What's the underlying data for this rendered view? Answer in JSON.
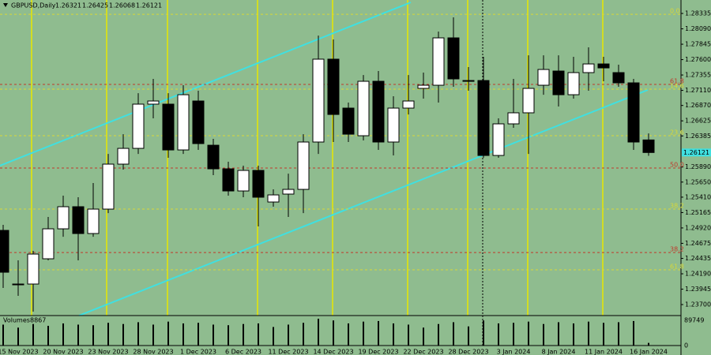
{
  "chart_data": {
    "type": "candlestick",
    "symbol": "GBPUSD,Daily",
    "volume_label": "Volumes",
    "categories": [
      null,
      "15 Nov 2023",
      null,
      null,
      "20 Nov 2023",
      null,
      null,
      "23 Nov 2023",
      null,
      null,
      "28 Nov 2023",
      null,
      null,
      "1 Dec 2023",
      null,
      null,
      "6 Dec 2023",
      null,
      null,
      "11 Dec 2023",
      null,
      null,
      "14 Dec 2023",
      null,
      null,
      "19 Dec 2023",
      null,
      null,
      "22 Dec 2023",
      null,
      null,
      "28 Dec 2023",
      null,
      null,
      "3 Jan 2024",
      null,
      null,
      "8 Jan 2024",
      null,
      null,
      "11 Jan 2024",
      null,
      null,
      "16 Jan 2024"
    ],
    "open": [
      1.24881,
      1.24027,
      1.24027,
      1.24429,
      1.24906,
      1.25258,
      1.24831,
      1.2522,
      1.25936,
      1.26187,
      1.26891,
      1.26891,
      1.26162,
      1.26941,
      1.26237,
      1.25861,
      1.25509,
      1.25836,
      1.25333,
      1.25459,
      1.25534,
      1.26288,
      1.27607,
      1.26828,
      1.26388,
      1.27255,
      1.26288,
      1.26828,
      1.27142,
      1.27192,
      1.27946,
      1.27267,
      1.27267,
      1.26074,
      1.26577,
      1.26753,
      1.27192,
      1.27418,
      1.27041,
      1.27393,
      1.27531,
      1.27393,
      1.2723,
      1.26321
    ],
    "high": [
      1.24969,
      1.24404,
      1.24555,
      1.25095,
      1.25434,
      1.25409,
      1.25635,
      1.26099,
      1.26413,
      1.27066,
      1.27293,
      1.27066,
      1.27192,
      1.27104,
      1.26338,
      1.25974,
      1.25911,
      1.25911,
      1.25534,
      1.25785,
      1.26413,
      1.27983,
      1.27921,
      1.26916,
      1.27355,
      1.27418,
      1.27016,
      1.27355,
      1.27393,
      1.28046,
      1.28272,
      1.27481,
      1.27644,
      1.26665,
      1.27293,
      1.27669,
      1.27669,
      1.27669,
      1.27644,
      1.27795,
      1.27644,
      1.27519,
      1.27293,
      1.26425
    ],
    "low": [
      1.23964,
      1.23839,
      1.23588,
      1.24404,
      1.2478,
      1.24404,
      1.2478,
      1.25157,
      1.25848,
      1.26099,
      1.26665,
      1.26037,
      1.26099,
      1.26162,
      1.2576,
      1.25434,
      1.25409,
      1.24944,
      1.25258,
      1.25095,
      1.25157,
      1.26099,
      1.26288,
      1.26288,
      1.26313,
      1.26162,
      1.26074,
      1.26727,
      1.26979,
      1.26916,
      1.27167,
      1.27104,
      1.26037,
      1.26037,
      1.26514,
      1.26099,
      1.27041,
      1.26853,
      1.26979,
      1.27104,
      1.27255,
      1.27167,
      1.26162,
      1.26068
    ],
    "close": [
      1.24215,
      1.24027,
      1.24504,
      1.24906,
      1.25258,
      1.24831,
      1.2522,
      1.25936,
      1.26187,
      1.26891,
      1.26941,
      1.26162,
      1.27041,
      1.26263,
      1.25861,
      1.25509,
      1.25836,
      1.25409,
      1.25446,
      1.25534,
      1.26288,
      1.27607,
      1.26727,
      1.26413,
      1.27255,
      1.26288,
      1.26828,
      1.26941,
      1.27192,
      1.27946,
      1.27293,
      1.27267,
      1.26074,
      1.26577,
      1.26753,
      1.27142,
      1.27443,
      1.27041,
      1.27393,
      1.27531,
      1.27468,
      1.2723,
      1.26288,
      1.26121
    ],
    "volume": [
      70000,
      60000,
      72000,
      66000,
      74000,
      70000,
      68000,
      76000,
      72000,
      78000,
      70000,
      80000,
      74000,
      76000,
      70000,
      68000,
      72000,
      74000,
      62000,
      70000,
      76000,
      89749,
      84000,
      74000,
      80000,
      82000,
      74000,
      70000,
      60000,
      72000,
      78000,
      64000,
      84000,
      74000,
      76000,
      80000,
      72000,
      78000,
      74000,
      80000,
      76000,
      78000,
      82000,
      8867
    ],
    "vlim": [
      0,
      89749
    ],
    "ylim": [
      1.23525,
      1.28549
    ],
    "yticks": [
      1.28335,
      {
        "value": 1.2809,
        "label": "1.28090"
      },
      1.27845,
      {
        "value": 1.276,
        "label": "1.27600"
      },
      1.27355,
      {
        "value": 1.2711,
        "label": "1.27110"
      },
      {
        "value": 1.2687,
        "label": "1.26870"
      },
      1.26625,
      1.26385,
      {
        "value": 1.2589,
        "label": "1.25890"
      },
      {
        "value": 1.2565,
        "label": "1.25650"
      },
      {
        "value": 1.2541,
        "label": "1.25410"
      },
      1.25165,
      {
        "value": 1.2492,
        "label": "1.24920"
      },
      1.24675,
      1.24435,
      {
        "value": 1.2419,
        "label": "1.24190"
      },
      1.23945,
      {
        "value": 1.237,
        "label": "1.23700"
      }
    ],
    "levels": [
      {
        "value": 1.28322,
        "label": "0.0",
        "color": "#d8d838"
      },
      {
        "value": 1.27205,
        "label": "61.8",
        "color": "#c0392b"
      },
      {
        "value": 1.27129,
        "label": "14.6",
        "color": "#d8d838"
      },
      {
        "value": 1.26388,
        "label": "23.6",
        "color": "#d8d838"
      },
      {
        "value": 1.25873,
        "label": "50.0",
        "color": "#c0392b"
      },
      {
        "value": 1.2522,
        "label": "38.2",
        "color": "#d8d838"
      },
      {
        "value": 1.24529,
        "label": "38.2",
        "color": "#c0392b"
      },
      {
        "value": 1.24253,
        "label": "61.8",
        "color": "#d8d838"
      }
    ]
  }
}
